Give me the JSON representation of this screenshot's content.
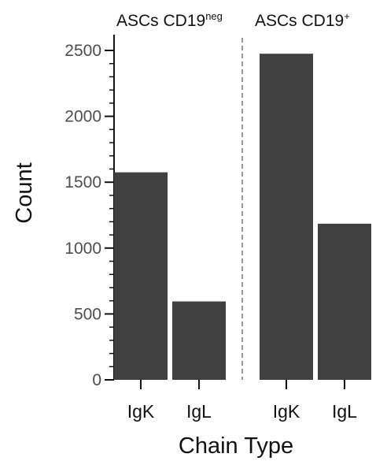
{
  "chart_data": {
    "type": "bar",
    "ylabel": "Count",
    "xlabel": "Chain Type",
    "ylim": [
      0,
      2550
    ],
    "yticks": [
      0,
      500,
      1000,
      1500,
      2000,
      2500
    ],
    "minor_ytick_step": 100,
    "bar_color": "#404040",
    "panel_divider": "dashed",
    "panels": [
      {
        "title_main": "ASCs CD19",
        "title_sup": "neg",
        "categories": [
          "IgK",
          "IgL"
        ],
        "values": [
          1575,
          595
        ]
      },
      {
        "title_main": "ASCs CD19",
        "title_sup": "+",
        "categories": [
          "IgK",
          "IgL"
        ],
        "values": [
          2475,
          1185
        ]
      }
    ]
  }
}
